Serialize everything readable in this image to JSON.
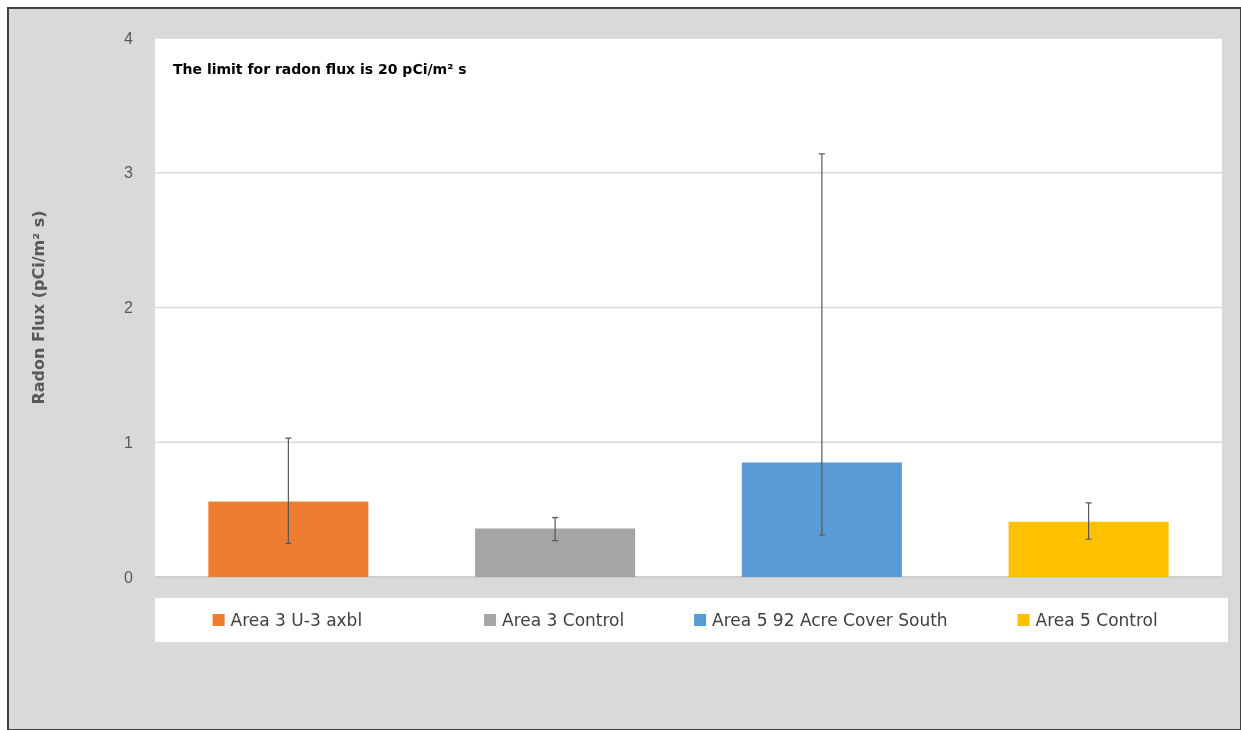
{
  "chart_data": {
    "type": "bar",
    "ylabel": "Radon Flux (pCi/m² s)",
    "annotations": [
      "The limit for radon flux is 20 pCi/m² s"
    ],
    "categories": [
      null
    ],
    "series": [
      {
        "name": "Area 3 U-3 axbl",
        "color": "#ed7d31",
        "values": [
          0.56
        ],
        "errors": [
          [
            0.25,
            1.03
          ]
        ]
      },
      {
        "name": "Area 3 Control",
        "color": "#a5a5a5",
        "values": [
          0.36
        ],
        "errors": [
          [
            0.27,
            0.44
          ]
        ]
      },
      {
        "name": "Area 5 92 Acre Cover South",
        "color": "#5b9bd5",
        "values": [
          0.85
        ],
        "errors": [
          [
            0.31,
            3.14
          ]
        ]
      },
      {
        "name": "Area 5 Control",
        "color": "#ffc000",
        "values": [
          0.41
        ],
        "errors": [
          [
            0.28,
            0.55
          ]
        ]
      }
    ],
    "ylim": [
      0,
      4
    ],
    "yticks": [
      0,
      1,
      2,
      3,
      4
    ],
    "grid": "y",
    "legend": "bottom"
  }
}
